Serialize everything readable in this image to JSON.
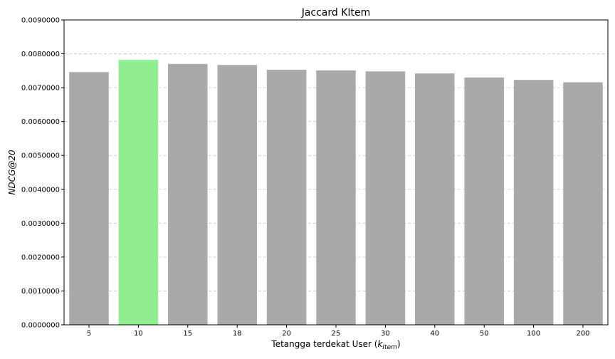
{
  "chart_data": {
    "type": "bar",
    "title": "Jaccard KItem",
    "xlabel": "Tetangga terdekat User (",
    "xlabel_math_base": "k",
    "xlabel_math_sub": "Item",
    "xlabel_suffix": ")",
    "ylabel": "NDCG@20",
    "categories": [
      "5",
      "10",
      "15",
      "18",
      "20",
      "25",
      "30",
      "40",
      "50",
      "100",
      "200"
    ],
    "values": [
      0.00746,
      0.00782,
      0.0077,
      0.00767,
      0.00753,
      0.00751,
      0.00748,
      0.00742,
      0.0073,
      0.00723,
      0.00716
    ],
    "yticks": [
      "0.0000000",
      "0.0010000",
      "0.0020000",
      "0.0030000",
      "0.0040000",
      "0.0050000",
      "0.0060000",
      "0.0070000",
      "0.0080000",
      "0.0090000"
    ],
    "ylim": [
      0,
      0.009
    ],
    "grid": "y-dashed",
    "highlight_index": 1,
    "colors": {
      "bar": "#a9a9a9",
      "highlight": "#90ee90",
      "grid": "#c8c8c8",
      "axis": "#000000"
    }
  }
}
